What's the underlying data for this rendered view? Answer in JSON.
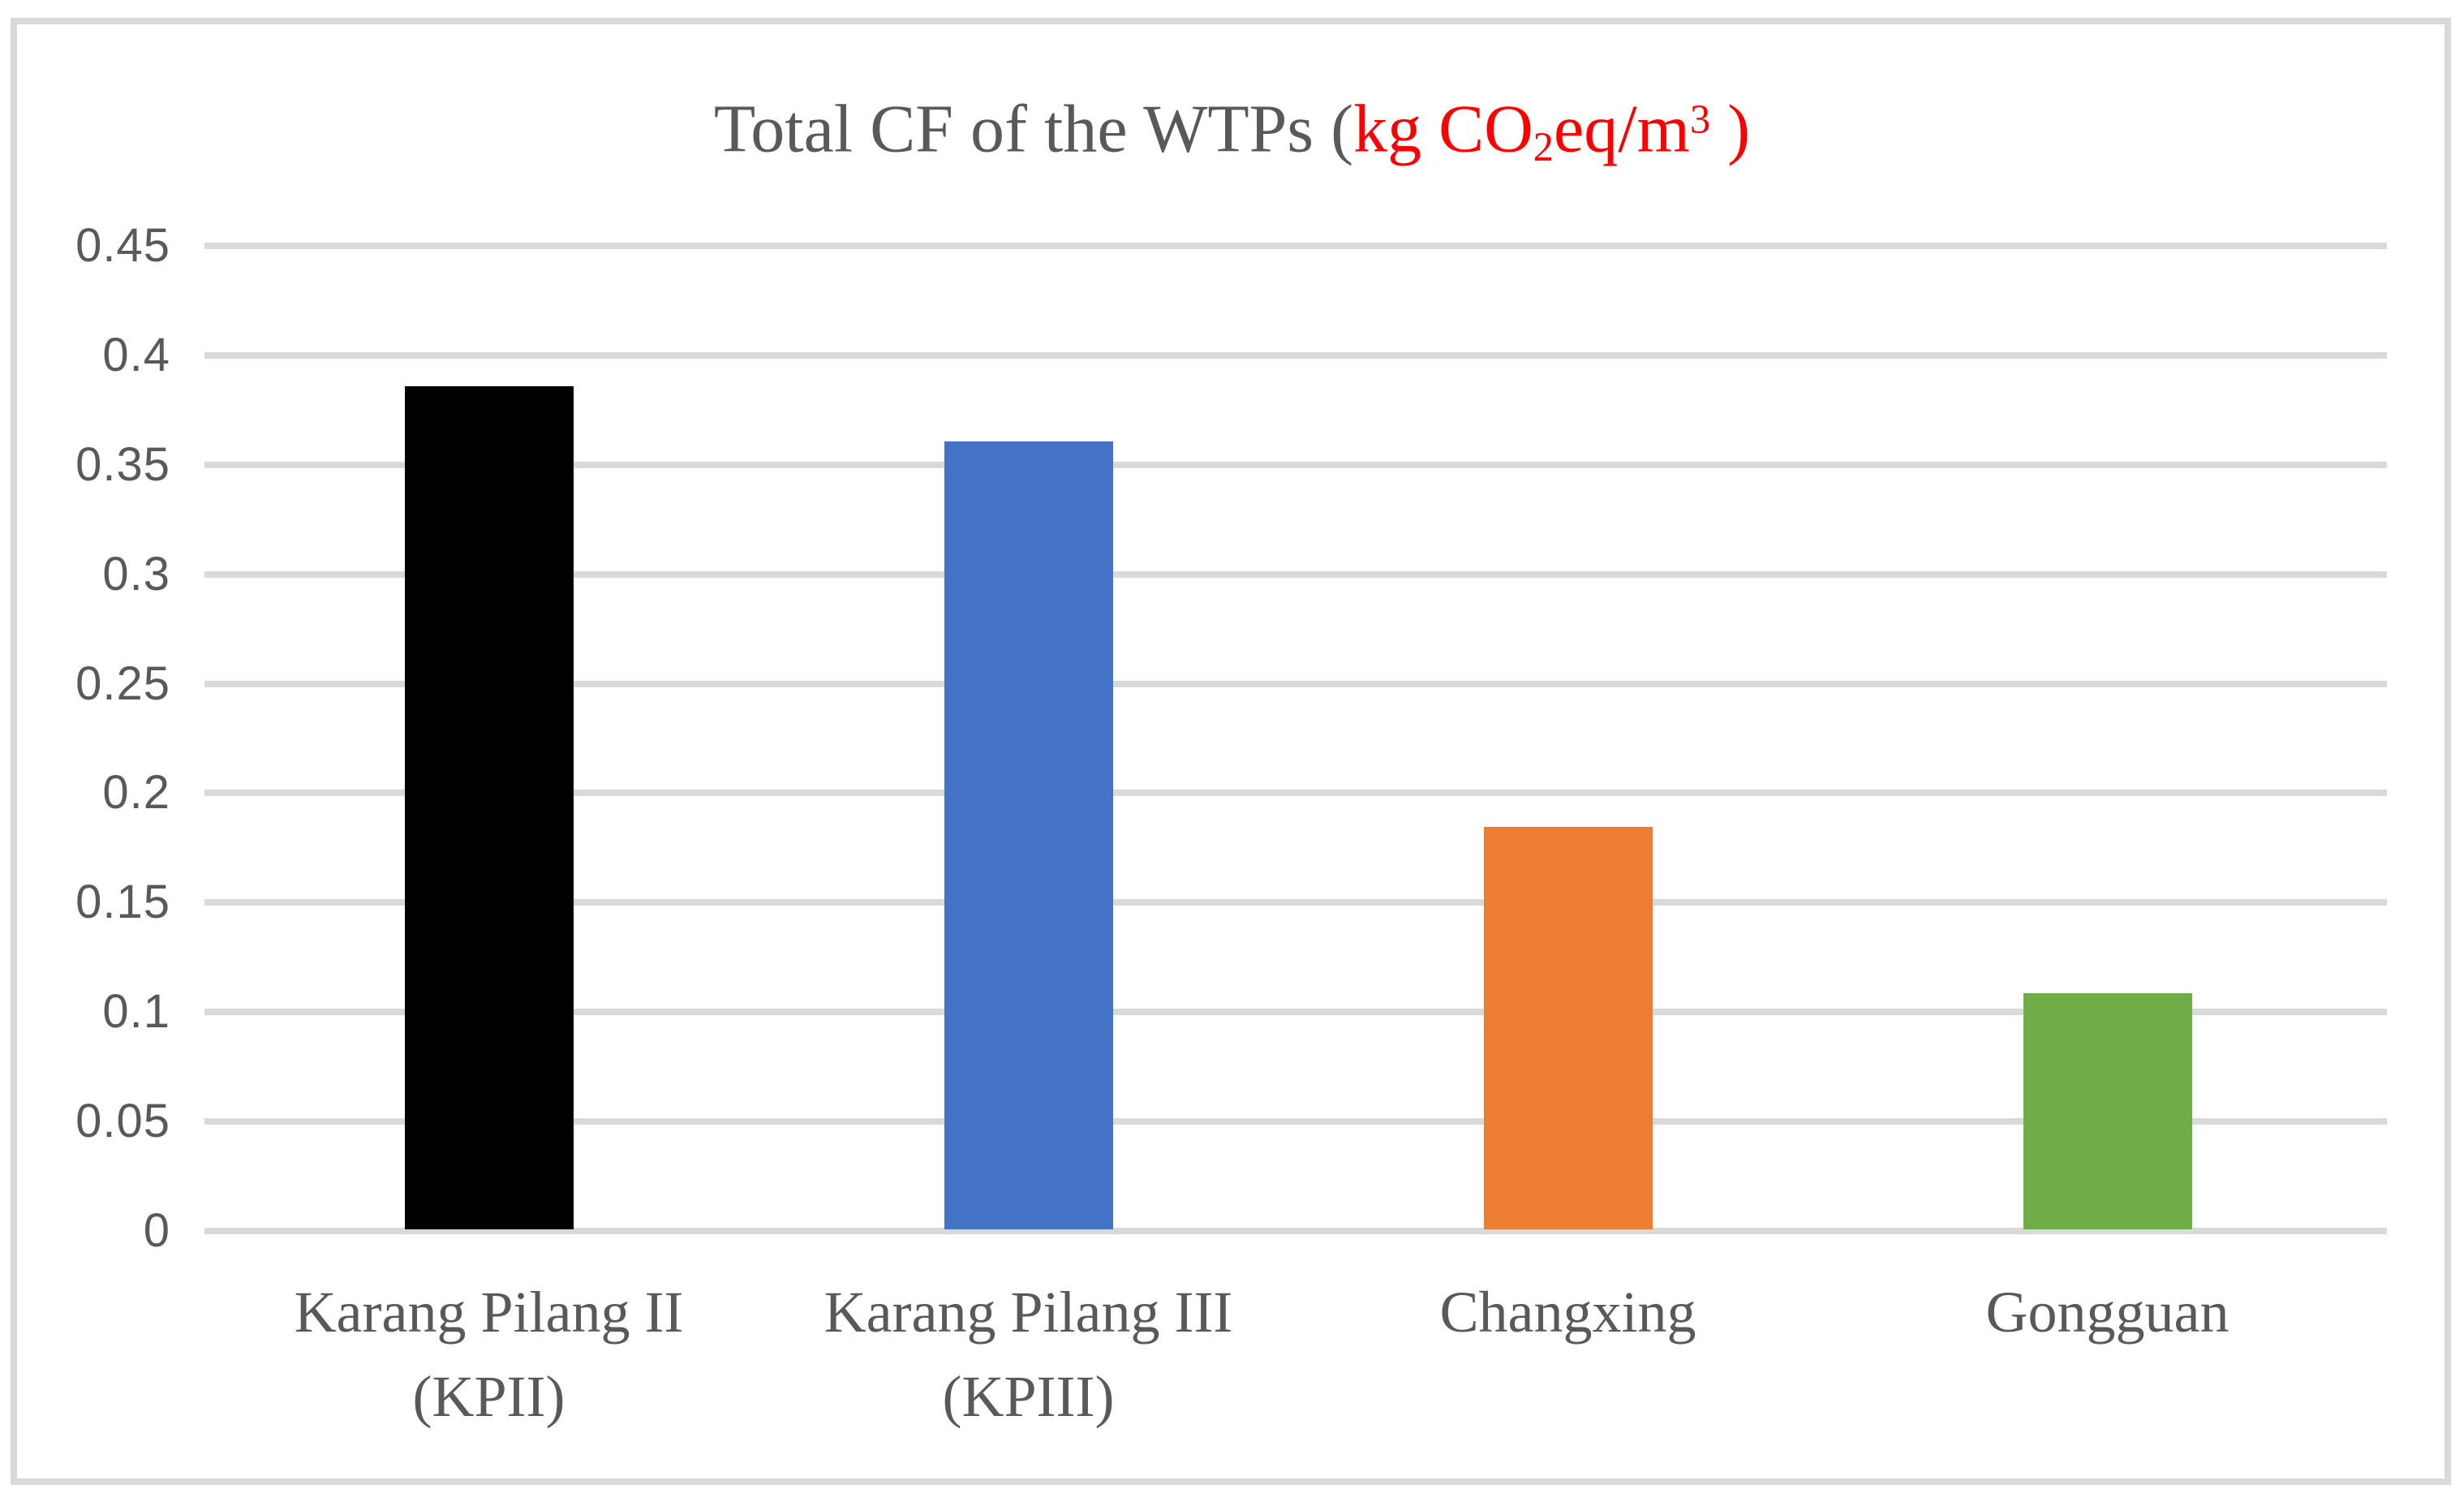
{
  "figure": {
    "background": "#FFFFFF",
    "border_color": "#D9D9D9",
    "gridline_color": "#D9D9D9",
    "text_color": "#595959",
    "title_unit_color": "#FF0000"
  },
  "chart_data": {
    "type": "bar",
    "title": "Total CF of the WTPs (kg CO2eq/m3 )",
    "title_parts": [
      {
        "text": "Total CF of the WTPs (",
        "color": "#595959",
        "script": "normal"
      },
      {
        "text": "kg CO",
        "color": "#FF0000",
        "script": "normal"
      },
      {
        "text": "2",
        "color": "#FF0000",
        "script": "sub"
      },
      {
        "text": "eq/m",
        "color": "#FF0000",
        "script": "normal"
      },
      {
        "text": "3",
        "color": "#FF0000",
        "script": "sup"
      },
      {
        "text": " )",
        "color": "#FF0000",
        "script": "normal"
      }
    ],
    "categories": [
      "Karang Pilang II (KPII)",
      "Karang Pilang III (KPIII)",
      "Changxing",
      "Gongguan"
    ],
    "category_lines": [
      [
        "Karang Pilang II",
        "(KPII)"
      ],
      [
        "Karang Pilang III",
        "(KPIII)"
      ],
      [
        "Changxing"
      ],
      [
        "Gongguan"
      ]
    ],
    "values": [
      0.385,
      0.36,
      0.184,
      0.108
    ],
    "bar_colors": [
      "#000000",
      "#4472C4",
      "#ED7D31",
      "#70AD47"
    ],
    "ylim": [
      0,
      0.45
    ],
    "ytick_labels": [
      "0",
      "0.05",
      "0.1",
      "0.15",
      "0.2",
      "0.25",
      "0.3",
      "0.35",
      "0.4",
      "0.45"
    ],
    "grid": true,
    "legend": "none",
    "xlabel": "",
    "ylabel": ""
  }
}
